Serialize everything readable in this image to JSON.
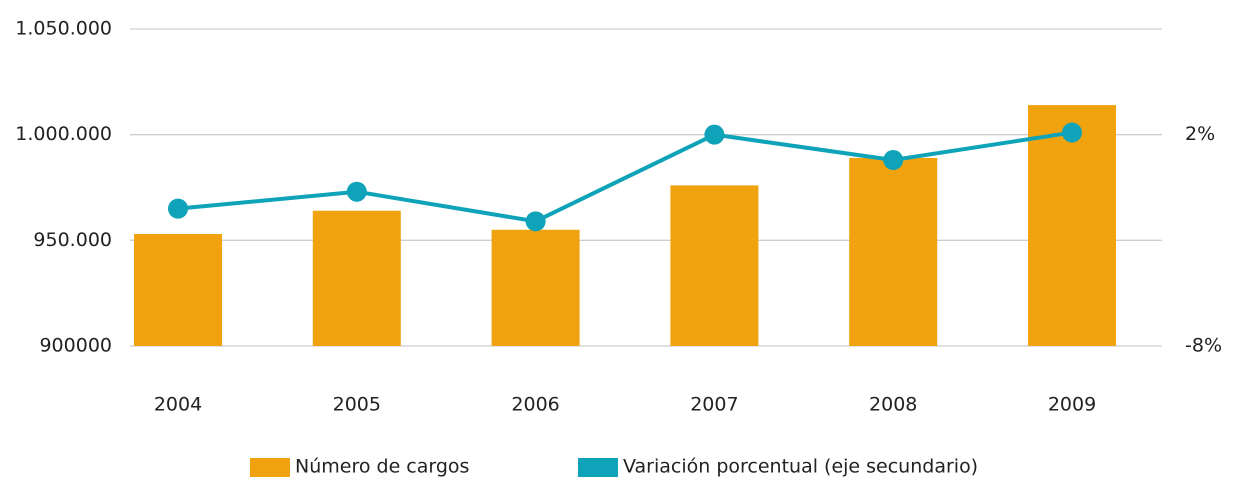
{
  "chart_data": {
    "type": "bar_line",
    "categories": [
      "2004",
      "2005",
      "2006",
      "2007",
      "2008",
      "2009"
    ],
    "series": [
      {
        "name": "Número de cargos",
        "color": "#f0a30f",
        "type": "bar",
        "values": [
          953000,
          964000,
          955000,
          976000,
          989000,
          1014000
        ]
      },
      {
        "name": "Variación porcentual (eje secundario)",
        "color": "#0fa3b9",
        "type": "line",
        "axis": "y2",
        "values": [
          -1.5,
          -0.7,
          -2.1,
          2.0,
          0.8,
          2.1
        ]
      }
    ],
    "ylim": [
      900000,
      1050000
    ],
    "yticks": [
      900000,
      {
        "value": 950000,
        "label": "950.000"
      },
      {
        "value": 1000000,
        "label": "1.000.000"
      },
      {
        "value": 1050000,
        "label": "1.050.000"
      }
    ],
    "y2lim": [
      -8,
      7
    ],
    "y2ticks": [
      {
        "value": -8,
        "label": "-8%"
      },
      {
        "value": 2,
        "label": "2%"
      }
    ],
    "grid": true,
    "legend": "bottom"
  }
}
